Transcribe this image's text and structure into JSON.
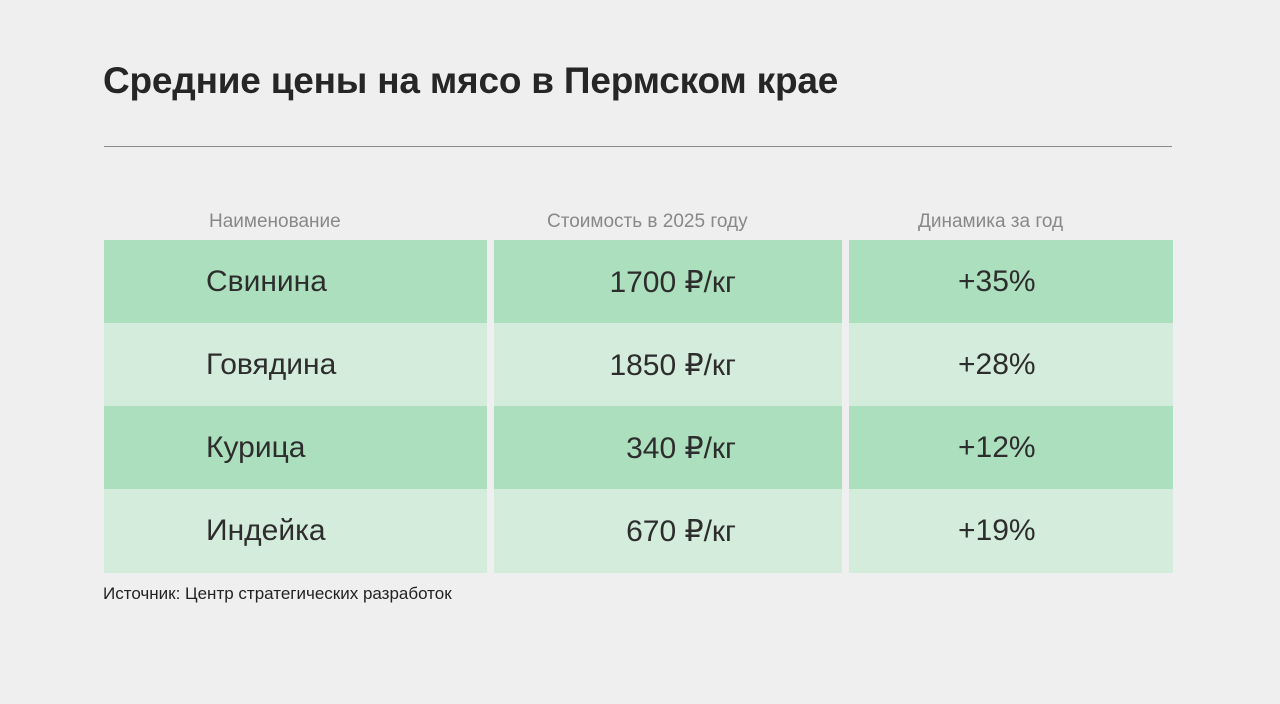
{
  "title": "Средние цены на мясо в Пермском крае",
  "chart_data": {
    "type": "table",
    "columns": [
      "Наименование",
      "Стоимость в 2025 году",
      "Динамика за год"
    ],
    "rows": [
      {
        "name": "Свинина",
        "price": "1700 ₽/кг",
        "change": "+35%"
      },
      {
        "name": "Говядина",
        "price": "1850 ₽/кг",
        "change": "+28%"
      },
      {
        "name": "Курица",
        "price": "340 ₽/кг",
        "change": "+12%"
      },
      {
        "name": "Индейка",
        "price": "670 ₽/кг",
        "change": "+19%"
      }
    ]
  },
  "source": "Источник: Центр стратегических разработок",
  "colors": {
    "row_dark": "#acdfbd",
    "row_light": "#d4ecdc",
    "background": "#efefef"
  }
}
